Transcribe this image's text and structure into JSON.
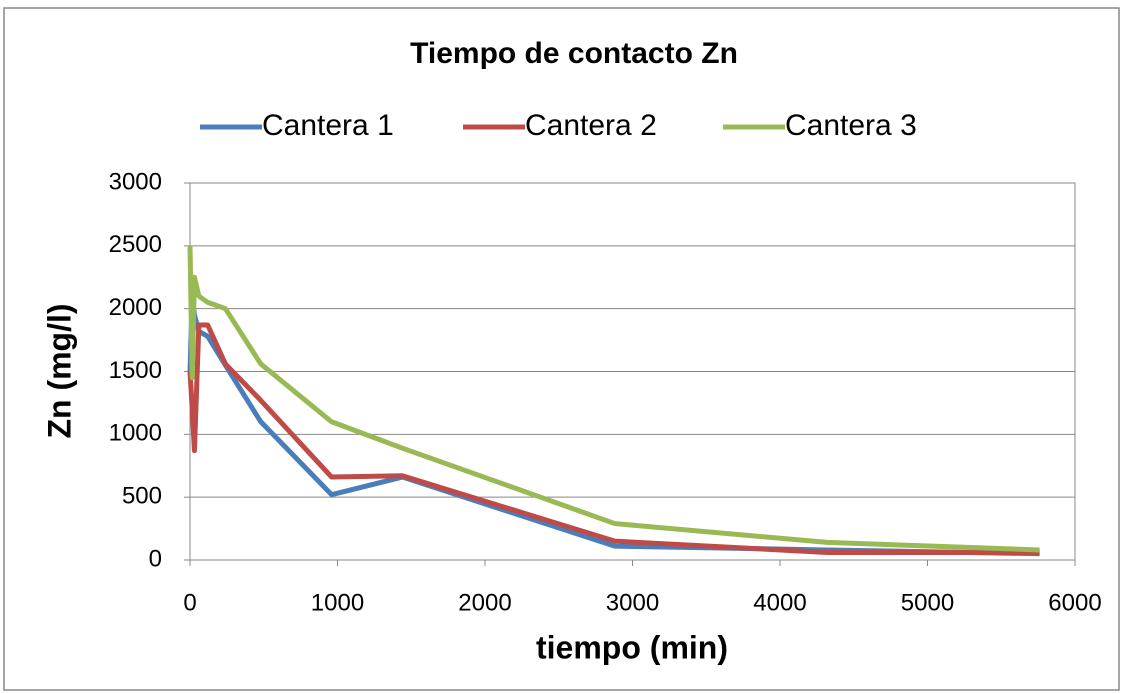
{
  "chart_data": {
    "type": "line",
    "title": "Tiempo de contacto Zn",
    "x_label": "tiempo (min)",
    "y_label": "Zn (mg/l)",
    "x": [
      0,
      15,
      30,
      60,
      120,
      240,
      480,
      960,
      1440,
      2880,
      4320,
      5760
    ],
    "series": [
      {
        "name": "Cantera 1",
        "color": "#4a7ebb",
        "values": [
          1500,
          2100,
          1950,
          1820,
          1780,
          1550,
          1100,
          520,
          660,
          110,
          80,
          50
        ]
      },
      {
        "name": "Cantera 2",
        "color": "#be4b48",
        "values": [
          1500,
          1200,
          870,
          1870,
          1870,
          1560,
          1270,
          660,
          670,
          150,
          60,
          60
        ]
      },
      {
        "name": "Cantera 3",
        "color": "#98b954",
        "values": [
          2500,
          1450,
          2250,
          2100,
          2050,
          2000,
          1560,
          1100,
          890,
          290,
          140,
          80
        ]
      }
    ],
    "xlim": [
      0,
      6000
    ],
    "xticks": [
      0,
      1000,
      2000,
      3000,
      4000,
      5000,
      6000
    ],
    "ylim": [
      0,
      3000
    ],
    "yticks": [
      0,
      500,
      1000,
      1500,
      2000,
      2500,
      3000
    ],
    "grid": true,
    "legend": "top"
  }
}
